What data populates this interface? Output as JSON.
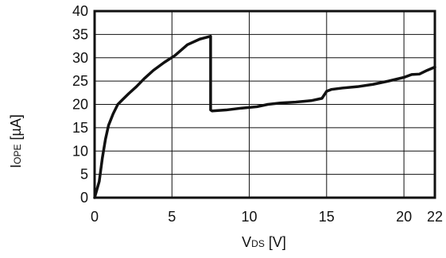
{
  "chart_data": {
    "type": "line",
    "title": "",
    "xlabel": {
      "main": "V",
      "sub": "DS",
      "unit": " [V]"
    },
    "ylabel": {
      "main": "I",
      "sub": "OPE",
      "unit": " [µA]"
    },
    "xlim": [
      0,
      22
    ],
    "ylim": [
      0,
      40
    ],
    "xticks": [
      0,
      5,
      10,
      15,
      20,
      22
    ],
    "yticks": [
      0,
      5,
      10,
      15,
      20,
      25,
      30,
      35,
      40
    ],
    "grid": true,
    "series": [
      {
        "color": "#111111",
        "x": [
          0,
          0.3,
          0.5,
          0.7,
          0.9,
          1.2,
          1.5,
          1.8,
          2.2,
          2.7,
          3.2,
          3.8,
          4.5,
          5.2,
          6.0,
          6.8,
          7.5,
          7.5,
          7.6,
          8.5,
          9.5,
          10.5,
          11.2,
          12.0,
          13.0,
          14.0,
          14.7,
          15.0,
          15.3,
          16.0,
          17.0,
          18.0,
          19.0,
          20.0,
          20.5,
          21.0,
          21.5,
          22.0
        ],
        "y": [
          0,
          3.5,
          8.5,
          12.5,
          15.5,
          18,
          20,
          21,
          22.3,
          23.8,
          25.5,
          27.3,
          29,
          30.5,
          32.8,
          34,
          34.6,
          18.8,
          18.6,
          18.8,
          19.2,
          19.5,
          20.0,
          20.3,
          20.5,
          20.8,
          21.3,
          22.8,
          23.2,
          23.5,
          23.8,
          24.3,
          25.0,
          25.8,
          26.4,
          26.5,
          27.3,
          28.0
        ]
      }
    ]
  }
}
